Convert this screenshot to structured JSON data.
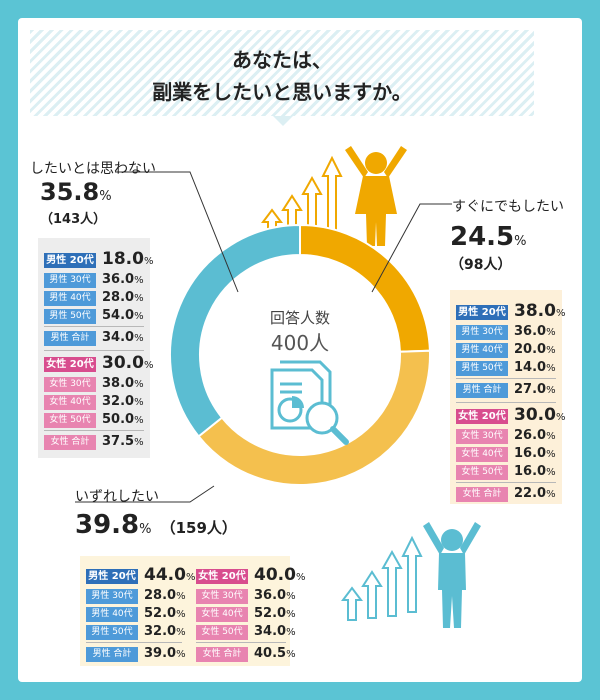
{
  "title": {
    "line1": "あなたは、",
    "line2": "副業をしたいと思いますか。"
  },
  "center": {
    "label": "回答人数",
    "value": "400人"
  },
  "colors": {
    "frame": "#5bc4d4",
    "yes_now": "#f0a800",
    "someday": "#f4c04e",
    "no": "#5bbdd2",
    "male": "#4e9ad9",
    "female": "#e884b0"
  },
  "chart_data": {
    "type": "pie",
    "donut": true,
    "slices": [
      {
        "label": "すぐにでもしたい",
        "value": 24.5,
        "count": "（98人）"
      },
      {
        "label": "いずれしたい",
        "value": 39.8,
        "count": "（159人）"
      },
      {
        "label": "したいとは思わない",
        "value": 35.8,
        "count": "（143人）"
      }
    ]
  },
  "sections": {
    "now": {
      "label": "すぐにでもしたい",
      "pct": "24.5",
      "unit": "%",
      "count": "（98人）",
      "rows": [
        {
          "tag": "男性 20代",
          "val": "38.0"
        },
        {
          "tag": "男性 30代",
          "val": "36.0"
        },
        {
          "tag": "男性 40代",
          "val": "20.0"
        },
        {
          "tag": "男性 50代",
          "val": "14.0"
        },
        {
          "tag": "男性 合計",
          "val": "27.0"
        },
        {
          "tag": "女性 20代",
          "val": "30.0"
        },
        {
          "tag": "女性 30代",
          "val": "26.0"
        },
        {
          "tag": "女性 40代",
          "val": "16.0"
        },
        {
          "tag": "女性 50代",
          "val": "16.0"
        },
        {
          "tag": "女性 合計",
          "val": "22.0"
        }
      ]
    },
    "no": {
      "label": "したいとは思わない",
      "pct": "35.8",
      "unit": "%",
      "count": "（143人）",
      "rows": [
        {
          "tag": "男性 20代",
          "val": "18.0"
        },
        {
          "tag": "男性 30代",
          "val": "36.0"
        },
        {
          "tag": "男性 40代",
          "val": "28.0"
        },
        {
          "tag": "男性 50代",
          "val": "54.0"
        },
        {
          "tag": "男性 合計",
          "val": "34.0"
        },
        {
          "tag": "女性 20代",
          "val": "30.0"
        },
        {
          "tag": "女性 30代",
          "val": "38.0"
        },
        {
          "tag": "女性 40代",
          "val": "32.0"
        },
        {
          "tag": "女性 50代",
          "val": "50.0"
        },
        {
          "tag": "女性 合計",
          "val": "37.5"
        }
      ]
    },
    "someday": {
      "label": "いずれしたい",
      "pct": "39.8",
      "unit": "%",
      "count": "（159人）",
      "male": [
        {
          "tag": "男性 20代",
          "val": "44.0"
        },
        {
          "tag": "男性 30代",
          "val": "28.0"
        },
        {
          "tag": "男性 40代",
          "val": "52.0"
        },
        {
          "tag": "男性 50代",
          "val": "32.0"
        },
        {
          "tag": "男性 合計",
          "val": "39.0"
        }
      ],
      "female": [
        {
          "tag": "女性 20代",
          "val": "40.0"
        },
        {
          "tag": "女性 30代",
          "val": "36.0"
        },
        {
          "tag": "女性 40代",
          "val": "52.0"
        },
        {
          "tag": "女性 50代",
          "val": "34.0"
        },
        {
          "tag": "女性 合計",
          "val": "40.5"
        }
      ]
    }
  },
  "percent_unit": "%",
  "icons": [
    "person-raising-arms-icon",
    "upward-arrows-icon",
    "document-search-icon"
  ]
}
